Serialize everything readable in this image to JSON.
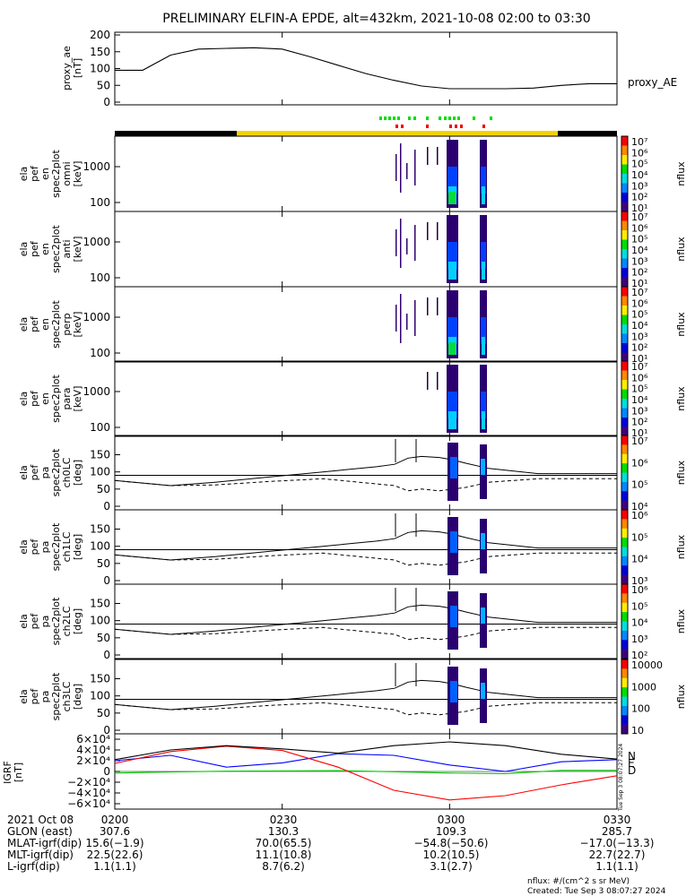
{
  "title": "PRELIMINARY ELFIN-A EPDE, alt=432km, 2021-10-08 02:00 to 03:30",
  "colors": {
    "axes": "#000000",
    "night_bar": "#000000",
    "day_bar": "#f2d200",
    "marker_green": "#00dd00",
    "marker_red": "#ee0000",
    "igrf_n": "#0000ff",
    "igrf_e": "#00cc00",
    "igrf_d": "#ff0000",
    "igrf_mag": "#000000"
  },
  "proxy_panel": {
    "ylabel_lines": [
      "proxy_ae",
      "[nT]"
    ],
    "ticks": [
      "200",
      "150",
      "100",
      "50",
      "0"
    ],
    "legend": "proxy_AE"
  },
  "spec_panels": [
    {
      "ylabel_lines": [
        "ela",
        "pef",
        "en",
        "spec2plot",
        "omni",
        "[keV]"
      ],
      "ticks": [
        "1000",
        "100"
      ],
      "cbar_label": "nflux",
      "cbar_ticks": [
        "10⁷",
        "10⁶",
        "10⁵",
        "10⁴",
        "10³",
        "10²",
        "10¹"
      ]
    },
    {
      "ylabel_lines": [
        "ela",
        "pef",
        "en",
        "spec2plot",
        "anti",
        "[keV]"
      ],
      "ticks": [
        "1000",
        "100"
      ],
      "cbar_label": "nflux",
      "cbar_ticks": [
        "10⁷",
        "10⁶",
        "10⁵",
        "10⁴",
        "10³",
        "10²",
        "10¹"
      ]
    },
    {
      "ylabel_lines": [
        "ela",
        "pef",
        "en",
        "spec2plot",
        "perp",
        "[keV]"
      ],
      "ticks": [
        "1000",
        "100"
      ],
      "cbar_label": "nflux",
      "cbar_ticks": [
        "10⁷",
        "10⁶",
        "10⁵",
        "10⁴",
        "10³",
        "10²",
        "10¹"
      ]
    },
    {
      "ylabel_lines": [
        "ela",
        "pef",
        "en",
        "spec2plot",
        "para",
        "[keV]"
      ],
      "ticks": [
        "1000",
        "100"
      ],
      "cbar_label": "nflux",
      "cbar_ticks": [
        "10⁷",
        "10⁶",
        "10⁵",
        "10⁴",
        "10³",
        "10²",
        "10¹"
      ]
    }
  ],
  "pa_panels": [
    {
      "ylabel_lines": [
        "ela",
        "pef",
        "pa",
        "spec2plot",
        "ch0LC",
        "[deg]"
      ],
      "ticks": [
        "150",
        "100",
        "50",
        "0"
      ],
      "cbar_label": "nflux",
      "cbar_ticks": [
        "10⁷",
        "10⁶",
        "10⁵",
        "10⁴"
      ]
    },
    {
      "ylabel_lines": [
        "ela",
        "pef",
        "pa",
        "spec2plot",
        "ch1LC",
        "[deg]"
      ],
      "ticks": [
        "150",
        "100",
        "50",
        "0"
      ],
      "cbar_label": "nflux",
      "cbar_ticks": [
        "10⁶",
        "10⁵",
        "10⁴",
        "10³"
      ]
    },
    {
      "ylabel_lines": [
        "ela",
        "pef",
        "pa",
        "spec2plot",
        "ch2LC",
        "[deg]"
      ],
      "ticks": [
        "150",
        "100",
        "50",
        "0"
      ],
      "cbar_label": "nflux",
      "cbar_ticks": [
        "10⁶",
        "10⁵",
        "10⁴",
        "10³",
        "10²"
      ]
    },
    {
      "ylabel_lines": [
        "ela",
        "pef",
        "pa",
        "spec2plot",
        "ch3LC",
        "[deg]"
      ],
      "ticks": [
        "150",
        "100",
        "50",
        "0"
      ],
      "cbar_label": "nflux",
      "cbar_ticks": [
        "10000",
        "1000",
        "100",
        "10"
      ]
    }
  ],
  "igrf_panel": {
    "ylabel_lines": [
      "IGRF",
      "[nT]"
    ],
    "ticks": [
      "6×10⁴",
      "4×10⁴",
      "2×10⁴",
      "0",
      "−2×10⁴",
      "−4×10⁴",
      "−6×10⁴"
    ],
    "legend": [
      "N",
      "E",
      "D"
    ],
    "created_vertical": "Tue Sep  3 08:07:27 2024"
  },
  "footer": {
    "rows": [
      {
        "label": "2021 Oct 08",
        "values": [
          "0200",
          "0230",
          "0300",
          "0330"
        ]
      },
      {
        "label": "GLON (east)",
        "values": [
          "307.6",
          "130.3",
          "109.3",
          "285.7"
        ]
      },
      {
        "label": "MLAT-igrf(dip)",
        "values": [
          "15.6(−1.9)",
          "70.0(65.5)",
          "−54.8(−50.6)",
          "−17.0(−13.3)"
        ]
      },
      {
        "label": "MLT-igrf(dip)",
        "values": [
          "22.5(22.6)",
          "11.1(10.8)",
          "10.2(10.5)",
          "22.7(22.7)"
        ]
      },
      {
        "label": "L-igrf(dip)",
        "values": [
          "1.1(1.1)",
          "8.7(6.2)",
          "3.1(2.7)",
          "1.1(1.1)"
        ]
      }
    ],
    "units_note": "nflux: #/(cm^2 s sr MeV)",
    "created": "Created: Tue Sep  3 08:07:27 2024"
  },
  "chart_data": {
    "type": "line",
    "title": "PRELIMINARY ELFIN-A EPDE, alt=432km, 2021-10-08 02:00 to 03:30",
    "x_range": [
      "02:00",
      "03:30"
    ],
    "x_ticks": [
      "0200",
      "0230",
      "0300",
      "0330"
    ],
    "series": [
      {
        "name": "proxy_AE",
        "panel": "proxy_ae",
        "x": [
          "02:00",
          "02:05",
          "02:10",
          "02:15",
          "02:20",
          "02:25",
          "02:30",
          "02:35",
          "02:40",
          "02:45",
          "02:50",
          "02:55",
          "03:00",
          "03:05",
          "03:10",
          "03:15",
          "03:20",
          "03:25",
          "03:30"
        ],
        "values": [
          95,
          95,
          140,
          158,
          160,
          162,
          158,
          135,
          110,
          85,
          65,
          48,
          40,
          40,
          40,
          42,
          50,
          55,
          55
        ]
      },
      {
        "name": "N",
        "panel": "IGRF",
        "x": [
          "02:00",
          "02:10",
          "02:20",
          "02:30",
          "02:40",
          "02:50",
          "03:00",
          "03:10",
          "03:20",
          "03:30"
        ],
        "values": [
          20000,
          30000,
          8000,
          16000,
          33000,
          30000,
          12000,
          0,
          18000,
          22000
        ]
      },
      {
        "name": "E",
        "panel": "IGRF",
        "x": [
          "02:00",
          "02:10",
          "02:20",
          "02:30",
          "02:40",
          "02:50",
          "03:00",
          "03:10",
          "03:20",
          "03:30"
        ],
        "values": [
          -3000,
          -1000,
          500,
          1000,
          1500,
          -500,
          -3000,
          -4000,
          2000,
          2000
        ]
      },
      {
        "name": "D",
        "panel": "IGRF",
        "x": [
          "02:00",
          "02:10",
          "02:20",
          "02:30",
          "02:40",
          "02:50",
          "03:00",
          "03:10",
          "03:20",
          "03:30"
        ],
        "values": [
          15000,
          37000,
          47000,
          39000,
          8000,
          -35000,
          -53000,
          -45000,
          -25000,
          -8000
        ]
      }
    ]
  }
}
